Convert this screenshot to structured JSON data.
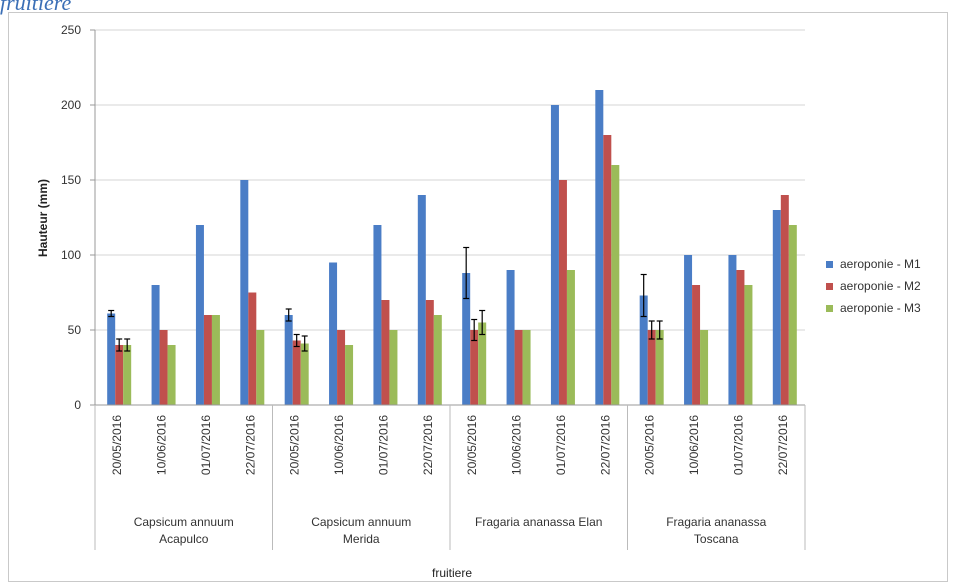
{
  "caption": "fruitiere",
  "chart_data": {
    "type": "bar",
    "ylabel": "Hauteur (mm)",
    "xlabel": "fruitiere",
    "ylim": [
      0,
      250
    ],
    "yticks": [
      "0",
      "50",
      "100",
      "150",
      "200",
      "250"
    ],
    "grid": true,
    "legend": "right",
    "groups": [
      {
        "name": "Capsicum annuum Acapulco",
        "lines": [
          "Capsicum annuum",
          "Acapulco"
        ],
        "dates": [
          "20/05/2016",
          "10/06/2016",
          "01/07/2016",
          "22/07/2016"
        ]
      },
      {
        "name": "Capsicum annuum Merida",
        "lines": [
          "Capsicum annuum",
          "Merida"
        ],
        "dates": [
          "20/05/2016",
          "10/06/2016",
          "01/07/2016",
          "22/07/2016"
        ]
      },
      {
        "name": "Fragaria ananassa Elan",
        "lines": [
          "Fragaria ananassa Elan"
        ],
        "dates": [
          "20/05/2016",
          "10/06/2016",
          "01/07/2016",
          "22/07/2016"
        ]
      },
      {
        "name": "Fragaria ananassa Toscana",
        "lines": [
          "Fragaria ananassa",
          "Toscana"
        ],
        "dates": [
          "20/05/2016",
          "10/06/2016",
          "01/07/2016",
          "22/07/2016"
        ]
      }
    ],
    "series": [
      {
        "name": "aeroponie - M1",
        "color": "#4a7dc6",
        "values": [
          61,
          80,
          120,
          150,
          60,
          95,
          120,
          140,
          88,
          90,
          200,
          210,
          73,
          100,
          100,
          130
        ],
        "errors": [
          2,
          0,
          0,
          0,
          4,
          0,
          0,
          0,
          17,
          0,
          0,
          0,
          14,
          0,
          0,
          0
        ]
      },
      {
        "name": "aeroponie - M2",
        "color": "#c0504d",
        "values": [
          40,
          50,
          60,
          75,
          43,
          50,
          70,
          70,
          50,
          50,
          150,
          180,
          50,
          80,
          90,
          140
        ],
        "errors": [
          4,
          0,
          0,
          0,
          4,
          0,
          0,
          0,
          7,
          0,
          0,
          0,
          6,
          0,
          0,
          0
        ]
      },
      {
        "name": "aeroponie - M3",
        "color": "#9bbb59",
        "values": [
          40,
          40,
          60,
          50,
          41,
          40,
          50,
          60,
          55,
          50,
          90,
          160,
          50,
          50,
          80,
          120
        ],
        "errors": [
          4,
          0,
          0,
          0,
          5,
          0,
          0,
          0,
          8,
          0,
          0,
          0,
          6,
          0,
          0,
          0
        ]
      }
    ]
  }
}
